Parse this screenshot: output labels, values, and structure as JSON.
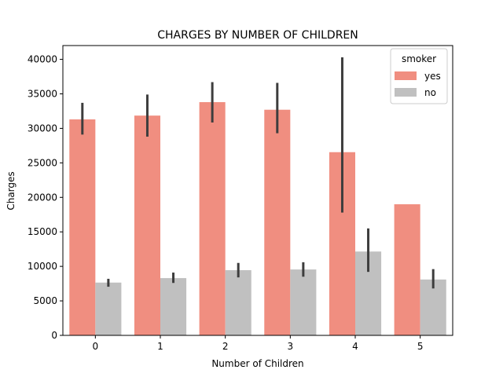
{
  "chart_data": {
    "type": "bar",
    "title": "CHARGES BY NUMBER OF CHILDREN",
    "xlabel": "Number of Children",
    "ylabel": "Charges",
    "categories": [
      "0",
      "1",
      "2",
      "3",
      "4",
      "5"
    ],
    "ylim": [
      0,
      42000
    ],
    "yticks": [
      0,
      5000,
      10000,
      15000,
      20000,
      25000,
      30000,
      35000,
      40000
    ],
    "series": [
      {
        "name": "yes",
        "color": "#F08E80",
        "values": [
          31300,
          31850,
          33800,
          32700,
          26550,
          19000
        ],
        "err_low": [
          29100,
          28800,
          30850,
          29300,
          17800,
          19000
        ],
        "err_high": [
          33700,
          34900,
          36700,
          36600,
          40300,
          19000
        ]
      },
      {
        "name": "no",
        "color": "#C0C0C0",
        "values": [
          7650,
          8300,
          9450,
          9550,
          12150,
          8100
        ],
        "err_low": [
          7050,
          7600,
          8400,
          8500,
          9200,
          6800
        ],
        "err_high": [
          8200,
          9100,
          10500,
          10600,
          15500,
          9600
        ]
      }
    ],
    "errorbar_color": "#3d3d3d",
    "legend": {
      "title": "smoker",
      "placement": "top-right"
    },
    "grid": false
  }
}
